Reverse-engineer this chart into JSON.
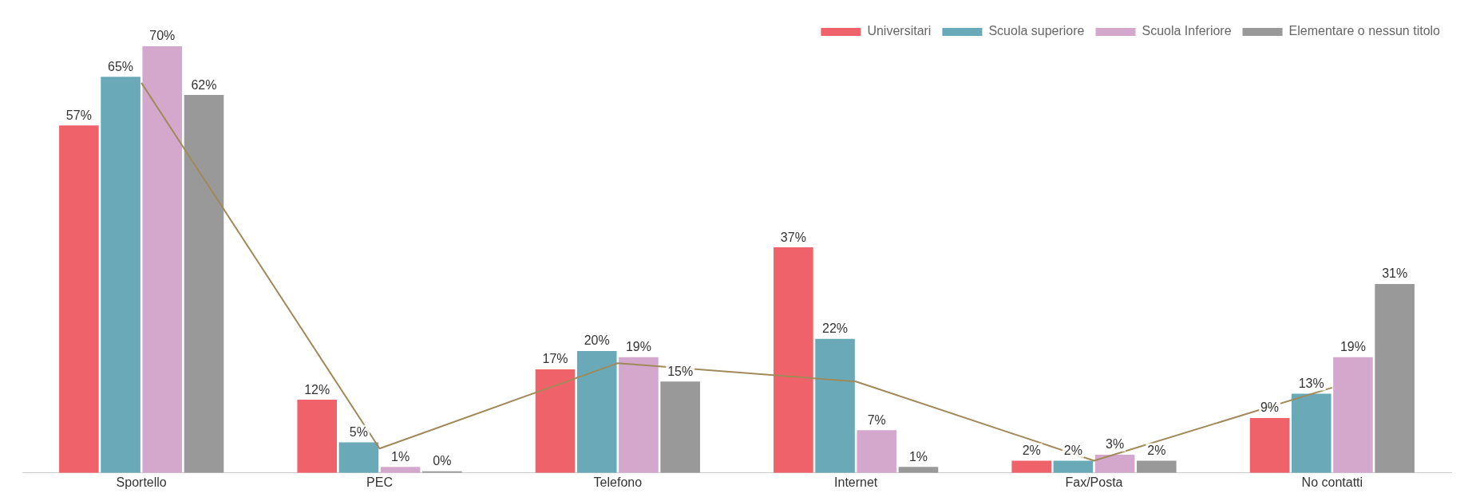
{
  "chart_data": {
    "type": "bar",
    "categories": [
      "Sportello",
      "PEC",
      "Telefono",
      "Internet",
      "Fax/Posta",
      "No contatti"
    ],
    "series": [
      {
        "name": "Universitari",
        "color": "#f0626a",
        "values": [
          57,
          12,
          17,
          37,
          2,
          9
        ],
        "value_labels": [
          "57%",
          "12%",
          "17%",
          "37%",
          "2%",
          "9%"
        ]
      },
      {
        "name": "Scuola superiore",
        "color": "#6aaab8",
        "values": [
          65,
          5,
          20,
          22,
          2,
          13
        ],
        "value_labels": [
          "65%",
          "5%",
          "20%",
          "22%",
          "2%",
          "13%"
        ]
      },
      {
        "name": "Scuola Inferiore",
        "color": "#d4a8cc",
        "values": [
          70,
          1,
          19,
          7,
          3,
          19
        ],
        "value_labels": [
          "70%",
          "1%",
          "19%",
          "7%",
          "3%",
          "19%"
        ]
      },
      {
        "name": "Elementare o nessun titolo",
        "color": "#999999",
        "values": [
          62,
          0,
          15,
          1,
          2,
          31
        ],
        "value_labels": [
          "62%",
          "0%",
          "15%",
          "1%",
          "2%",
          "31%"
        ]
      },
      {
        "type": "line",
        "color": "#a08a5a",
        "values": [
          64,
          4,
          18,
          15,
          2,
          14
        ],
        "marker": "none"
      }
    ],
    "grid": false,
    "legend": "top right"
  }
}
